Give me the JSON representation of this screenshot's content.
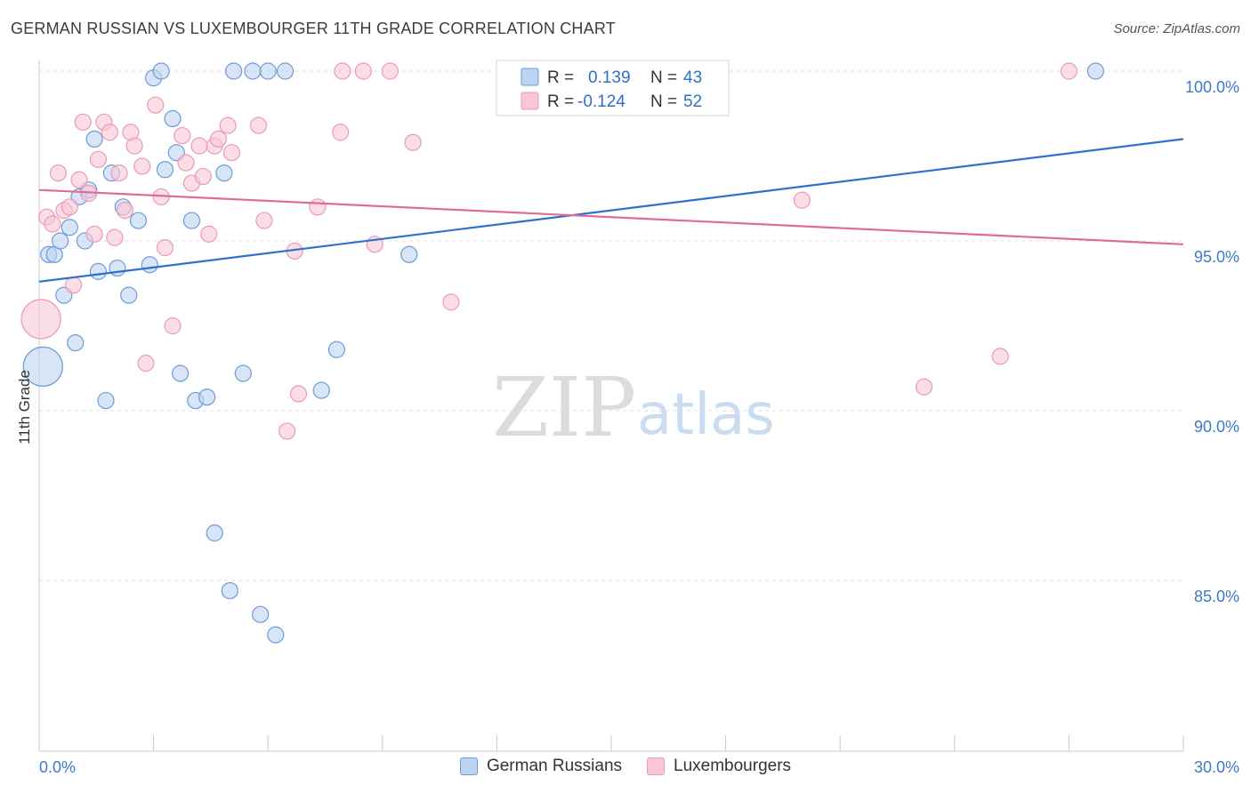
{
  "title": "GERMAN RUSSIAN VS LUXEMBOURGER 11TH GRADE CORRELATION CHART",
  "source": "Source: ZipAtlas.com",
  "watermark": {
    "zip": "ZIP",
    "atlas": "atlas"
  },
  "colors": {
    "blue": "#2f6fce",
    "blue_fill": "#bcd4f2",
    "blue_stroke": "#6b9bd9",
    "pink": "#e06b95",
    "pink_fill": "#f8c6d6",
    "pink_stroke": "#eb9ab6",
    "grid": "#e0e0e0",
    "axis_text": "#3d7ac9"
  },
  "legend": {
    "r_label": "R =",
    "n_label": "N =",
    "rows": [
      {
        "series": "German Russians",
        "r": "0.139",
        "n": "43"
      },
      {
        "series": "Luxembourgers",
        "r": "-0.124",
        "n": "52"
      }
    ]
  },
  "chart_data": {
    "type": "scatter",
    "xlabel": "",
    "ylabel": "11th Grade",
    "xlim": [
      0.0,
      30.0
    ],
    "ylim": [
      80.0,
      101.0
    ],
    "x_tick_labels": [
      {
        "value": 0.0,
        "label": "0.0%"
      },
      {
        "value": 30.0,
        "label": "30.0%"
      }
    ],
    "y_tick_labels": [
      {
        "value": 100.0,
        "label": "100.0%"
      },
      {
        "value": 95.0,
        "label": "95.0%"
      },
      {
        "value": 90.0,
        "label": "90.0%"
      },
      {
        "value": 85.0,
        "label": "85.0%"
      }
    ],
    "grid": true,
    "legend_position": "top-center",
    "series": [
      {
        "name": "German Russians",
        "color": "blue",
        "trend": {
          "x": [
            0.0,
            30.0
          ],
          "y": [
            93.8,
            98.0
          ]
        },
        "points": [
          {
            "x": 0.1,
            "y": 91.3,
            "big": true
          },
          {
            "x": 0.25,
            "y": 94.6
          },
          {
            "x": 0.4,
            "y": 94.6
          },
          {
            "x": 0.55,
            "y": 95.0
          },
          {
            "x": 0.65,
            "y": 93.4
          },
          {
            "x": 0.8,
            "y": 95.4
          },
          {
            "x": 0.95,
            "y": 92.0
          },
          {
            "x": 1.05,
            "y": 96.3
          },
          {
            "x": 1.2,
            "y": 95.0
          },
          {
            "x": 1.3,
            "y": 96.5
          },
          {
            "x": 1.45,
            "y": 98.0
          },
          {
            "x": 1.55,
            "y": 94.1
          },
          {
            "x": 1.75,
            "y": 90.3
          },
          {
            "x": 1.9,
            "y": 97.0
          },
          {
            "x": 2.05,
            "y": 94.2
          },
          {
            "x": 2.2,
            "y": 96.0
          },
          {
            "x": 2.35,
            "y": 93.4
          },
          {
            "x": 2.6,
            "y": 95.6
          },
          {
            "x": 2.9,
            "y": 94.3
          },
          {
            "x": 3.0,
            "y": 99.8
          },
          {
            "x": 3.2,
            "y": 100.0
          },
          {
            "x": 3.3,
            "y": 97.1
          },
          {
            "x": 3.5,
            "y": 98.6
          },
          {
            "x": 3.6,
            "y": 97.6
          },
          {
            "x": 3.7,
            "y": 91.1
          },
          {
            "x": 4.0,
            "y": 95.6
          },
          {
            "x": 4.1,
            "y": 90.3
          },
          {
            "x": 4.4,
            "y": 90.4
          },
          {
            "x": 4.6,
            "y": 86.4
          },
          {
            "x": 4.85,
            "y": 97.0
          },
          {
            "x": 5.0,
            "y": 84.7
          },
          {
            "x": 5.1,
            "y": 100.0
          },
          {
            "x": 5.35,
            "y": 91.1
          },
          {
            "x": 5.6,
            "y": 100.0
          },
          {
            "x": 5.8,
            "y": 84.0
          },
          {
            "x": 6.0,
            "y": 100.0
          },
          {
            "x": 6.2,
            "y": 83.4
          },
          {
            "x": 6.45,
            "y": 100.0
          },
          {
            "x": 7.4,
            "y": 90.6
          },
          {
            "x": 7.8,
            "y": 91.8
          },
          {
            "x": 9.7,
            "y": 94.6
          },
          {
            "x": 12.5,
            "y": 100.0
          },
          {
            "x": 27.7,
            "y": 100.0
          }
        ]
      },
      {
        "name": "Luxembourgers",
        "color": "pink",
        "trend": {
          "x": [
            0.0,
            30.0
          ],
          "y": [
            96.5,
            94.9
          ]
        },
        "points": [
          {
            "x": 0.05,
            "y": 92.7,
            "big": true
          },
          {
            "x": 0.2,
            "y": 95.7
          },
          {
            "x": 0.35,
            "y": 95.5
          },
          {
            "x": 0.5,
            "y": 97.0
          },
          {
            "x": 0.65,
            "y": 95.9
          },
          {
            "x": 0.8,
            "y": 96.0
          },
          {
            "x": 0.9,
            "y": 93.7
          },
          {
            "x": 1.05,
            "y": 96.8
          },
          {
            "x": 1.15,
            "y": 98.5
          },
          {
            "x": 1.3,
            "y": 96.4
          },
          {
            "x": 1.45,
            "y": 95.2
          },
          {
            "x": 1.55,
            "y": 97.4
          },
          {
            "x": 1.7,
            "y": 98.5
          },
          {
            "x": 1.85,
            "y": 98.2
          },
          {
            "x": 1.98,
            "y": 95.1
          },
          {
            "x": 2.1,
            "y": 97.0
          },
          {
            "x": 2.25,
            "y": 95.9
          },
          {
            "x": 2.4,
            "y": 98.2
          },
          {
            "x": 2.5,
            "y": 97.8
          },
          {
            "x": 2.7,
            "y": 97.2
          },
          {
            "x": 2.8,
            "y": 91.4
          },
          {
            "x": 3.05,
            "y": 99.0
          },
          {
            "x": 3.2,
            "y": 96.3
          },
          {
            "x": 3.3,
            "y": 94.8
          },
          {
            "x": 3.5,
            "y": 92.5
          },
          {
            "x": 3.75,
            "y": 98.1
          },
          {
            "x": 3.85,
            "y": 97.3
          },
          {
            "x": 4.0,
            "y": 96.7
          },
          {
            "x": 4.2,
            "y": 97.8
          },
          {
            "x": 4.3,
            "y": 96.9
          },
          {
            "x": 4.45,
            "y": 95.2
          },
          {
            "x": 4.6,
            "y": 97.8
          },
          {
            "x": 4.7,
            "y": 98.0
          },
          {
            "x": 4.95,
            "y": 98.4
          },
          {
            "x": 5.05,
            "y": 97.6
          },
          {
            "x": 5.75,
            "y": 98.4
          },
          {
            "x": 5.9,
            "y": 95.6
          },
          {
            "x": 6.5,
            "y": 89.4
          },
          {
            "x": 6.7,
            "y": 94.7
          },
          {
            "x": 6.8,
            "y": 90.5
          },
          {
            "x": 7.3,
            "y": 96.0
          },
          {
            "x": 7.9,
            "y": 98.2
          },
          {
            "x": 7.95,
            "y": 100.0
          },
          {
            "x": 8.5,
            "y": 100.0
          },
          {
            "x": 8.8,
            "y": 94.9
          },
          {
            "x": 9.2,
            "y": 100.0
          },
          {
            "x": 9.8,
            "y": 97.9
          },
          {
            "x": 10.8,
            "y": 93.2
          },
          {
            "x": 20.0,
            "y": 96.2
          },
          {
            "x": 23.2,
            "y": 90.7
          },
          {
            "x": 25.2,
            "y": 91.6
          },
          {
            "x": 27.0,
            "y": 100.0
          }
        ]
      }
    ]
  }
}
